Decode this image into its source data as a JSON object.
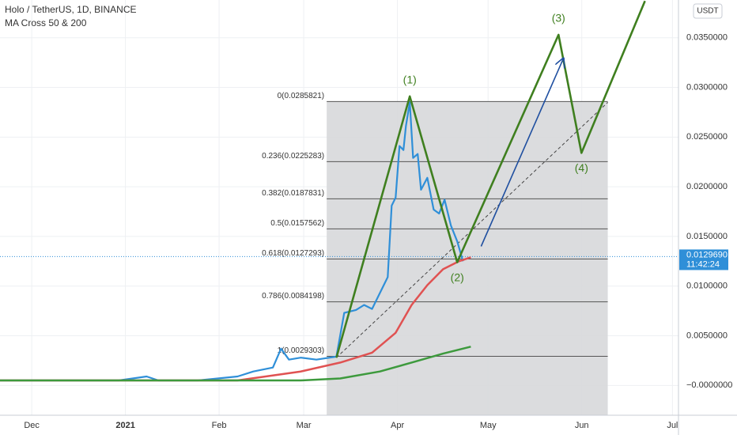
{
  "chart_data": {
    "type": "line",
    "title": "Holo / TetherUS, 1D, BINANCE",
    "subtitle": "MA Cross 50 & 200",
    "currency": "USDT",
    "xlim": [
      -10.5,
      214
    ],
    "ylim": [
      -0.003,
      0.0388
    ],
    "xticks": [
      {
        "value": 0,
        "label": "Dec"
      },
      {
        "value": 31,
        "label": "2021"
      },
      {
        "value": 62,
        "label": "Feb"
      },
      {
        "value": 90,
        "label": "Mar"
      },
      {
        "value": 121,
        "label": "Apr"
      },
      {
        "value": 151,
        "label": "May"
      },
      {
        "value": 182,
        "label": "Jun"
      },
      {
        "value": 212,
        "label": "Jul"
      }
    ],
    "yticks": [
      {
        "value": 0,
        "label": "−0.0000000"
      },
      {
        "value": 0.005,
        "label": "0.0050000"
      },
      {
        "value": 0.01,
        "label": "0.0100000"
      },
      {
        "value": 0.015,
        "label": "0.0150000"
      },
      {
        "value": 0.02,
        "label": "0.0200000"
      },
      {
        "value": 0.025,
        "label": "0.0250000"
      },
      {
        "value": 0.03,
        "label": "0.0300000"
      },
      {
        "value": 0.035,
        "label": "0.0350000"
      }
    ],
    "grid": true,
    "series": [
      {
        "color": "#2f8fd8",
        "x": [
          -10.5,
          2.6,
          15.7,
          28.8,
          38,
          41.9,
          55,
          68.1,
          73.3,
          79.8,
          82.5,
          85.1,
          89,
          94.2,
          100.8,
          103.4,
          107.3,
          110,
          112.6,
          115.2,
          117.8,
          119.1,
          120.4,
          121.7,
          123,
          123.8,
          125.1,
          126.2,
          127.7,
          128.8,
          130.9,
          133,
          134.8,
          136.6,
          138.7,
          140.8,
          142.7
        ],
        "values": [
          0.0005,
          0.0005,
          0.0005,
          0.0005,
          0.0009,
          0.0005,
          0.0005,
          0.0009,
          0.0014,
          0.0018,
          0.0037,
          0.0026,
          0.0028,
          0.0026,
          0.0029,
          0.0073,
          0.0076,
          0.0081,
          0.0077,
          0.0093,
          0.0109,
          0.0181,
          0.0189,
          0.0241,
          0.0237,
          0.0261,
          0.0285,
          0.0229,
          0.0233,
          0.0197,
          0.0209,
          0.0177,
          0.0173,
          0.0187,
          0.0161,
          0.0145,
          0.0125
        ]
      },
      {
        "color": "#e05252",
        "x": [
          -10.5,
          68.1,
          89,
          102.1,
          112.6,
          120.4,
          125.7,
          130.9,
          136.1,
          141.4,
          145.3
        ],
        "values": [
          0.0005,
          0.0005,
          0.0014,
          0.0023,
          0.0033,
          0.0053,
          0.0081,
          0.0101,
          0.0117,
          0.0125,
          0.0129
        ]
      },
      {
        "color": "#3d9a3d",
        "x": [
          -10.5,
          89,
          102.1,
          115.2,
          125.7,
          136.1,
          145.3
        ],
        "values": [
          0.0005,
          0.0005,
          0.0007,
          0.0014,
          0.0023,
          0.0032,
          0.0039
        ]
      }
    ],
    "fib_box_x": [
      97.6,
      190.6
    ],
    "fib_levels": [
      {
        "value": 0.0285821,
        "label": "0(0.0285821)"
      },
      {
        "value": 0.0225283,
        "label": "0.236(0.0225283)"
      },
      {
        "value": 0.0187831,
        "label": "0.382(0.0187831)"
      },
      {
        "value": 0.0157562,
        "label": "0.5(0.0157562)"
      },
      {
        "value": 0.0127293,
        "label": "0.618(0.0127293)"
      },
      {
        "value": 0.0084198,
        "label": "0.786(0.0084198)"
      },
      {
        "value": 0.0029303,
        "label": "1(0.0029303)"
      }
    ],
    "waves": {
      "color": "#3f7f1f",
      "x": [
        100.8,
        125.1,
        140.8,
        174.3,
        181.9,
        202.9
      ],
      "values": [
        0.0028,
        0.0291,
        0.0124,
        0.0353,
        0.0234,
        0.0387
      ],
      "labels": [
        "(1)",
        "(2)",
        "(3)",
        "(4)"
      ]
    },
    "arrow": {
      "color": "#1f4fa0",
      "x": [
        148.7,
        175.9
      ],
      "values": [
        0.014,
        0.0329
      ]
    },
    "trend": {
      "x": [
        100.8,
        190.6
      ],
      "values": [
        0.0028,
        0.0285
      ]
    },
    "last_price": {
      "value": 0.012969,
      "value_label": "0.0129690",
      "countdown": "11:42:24",
      "color": "#2f8fd8"
    }
  }
}
